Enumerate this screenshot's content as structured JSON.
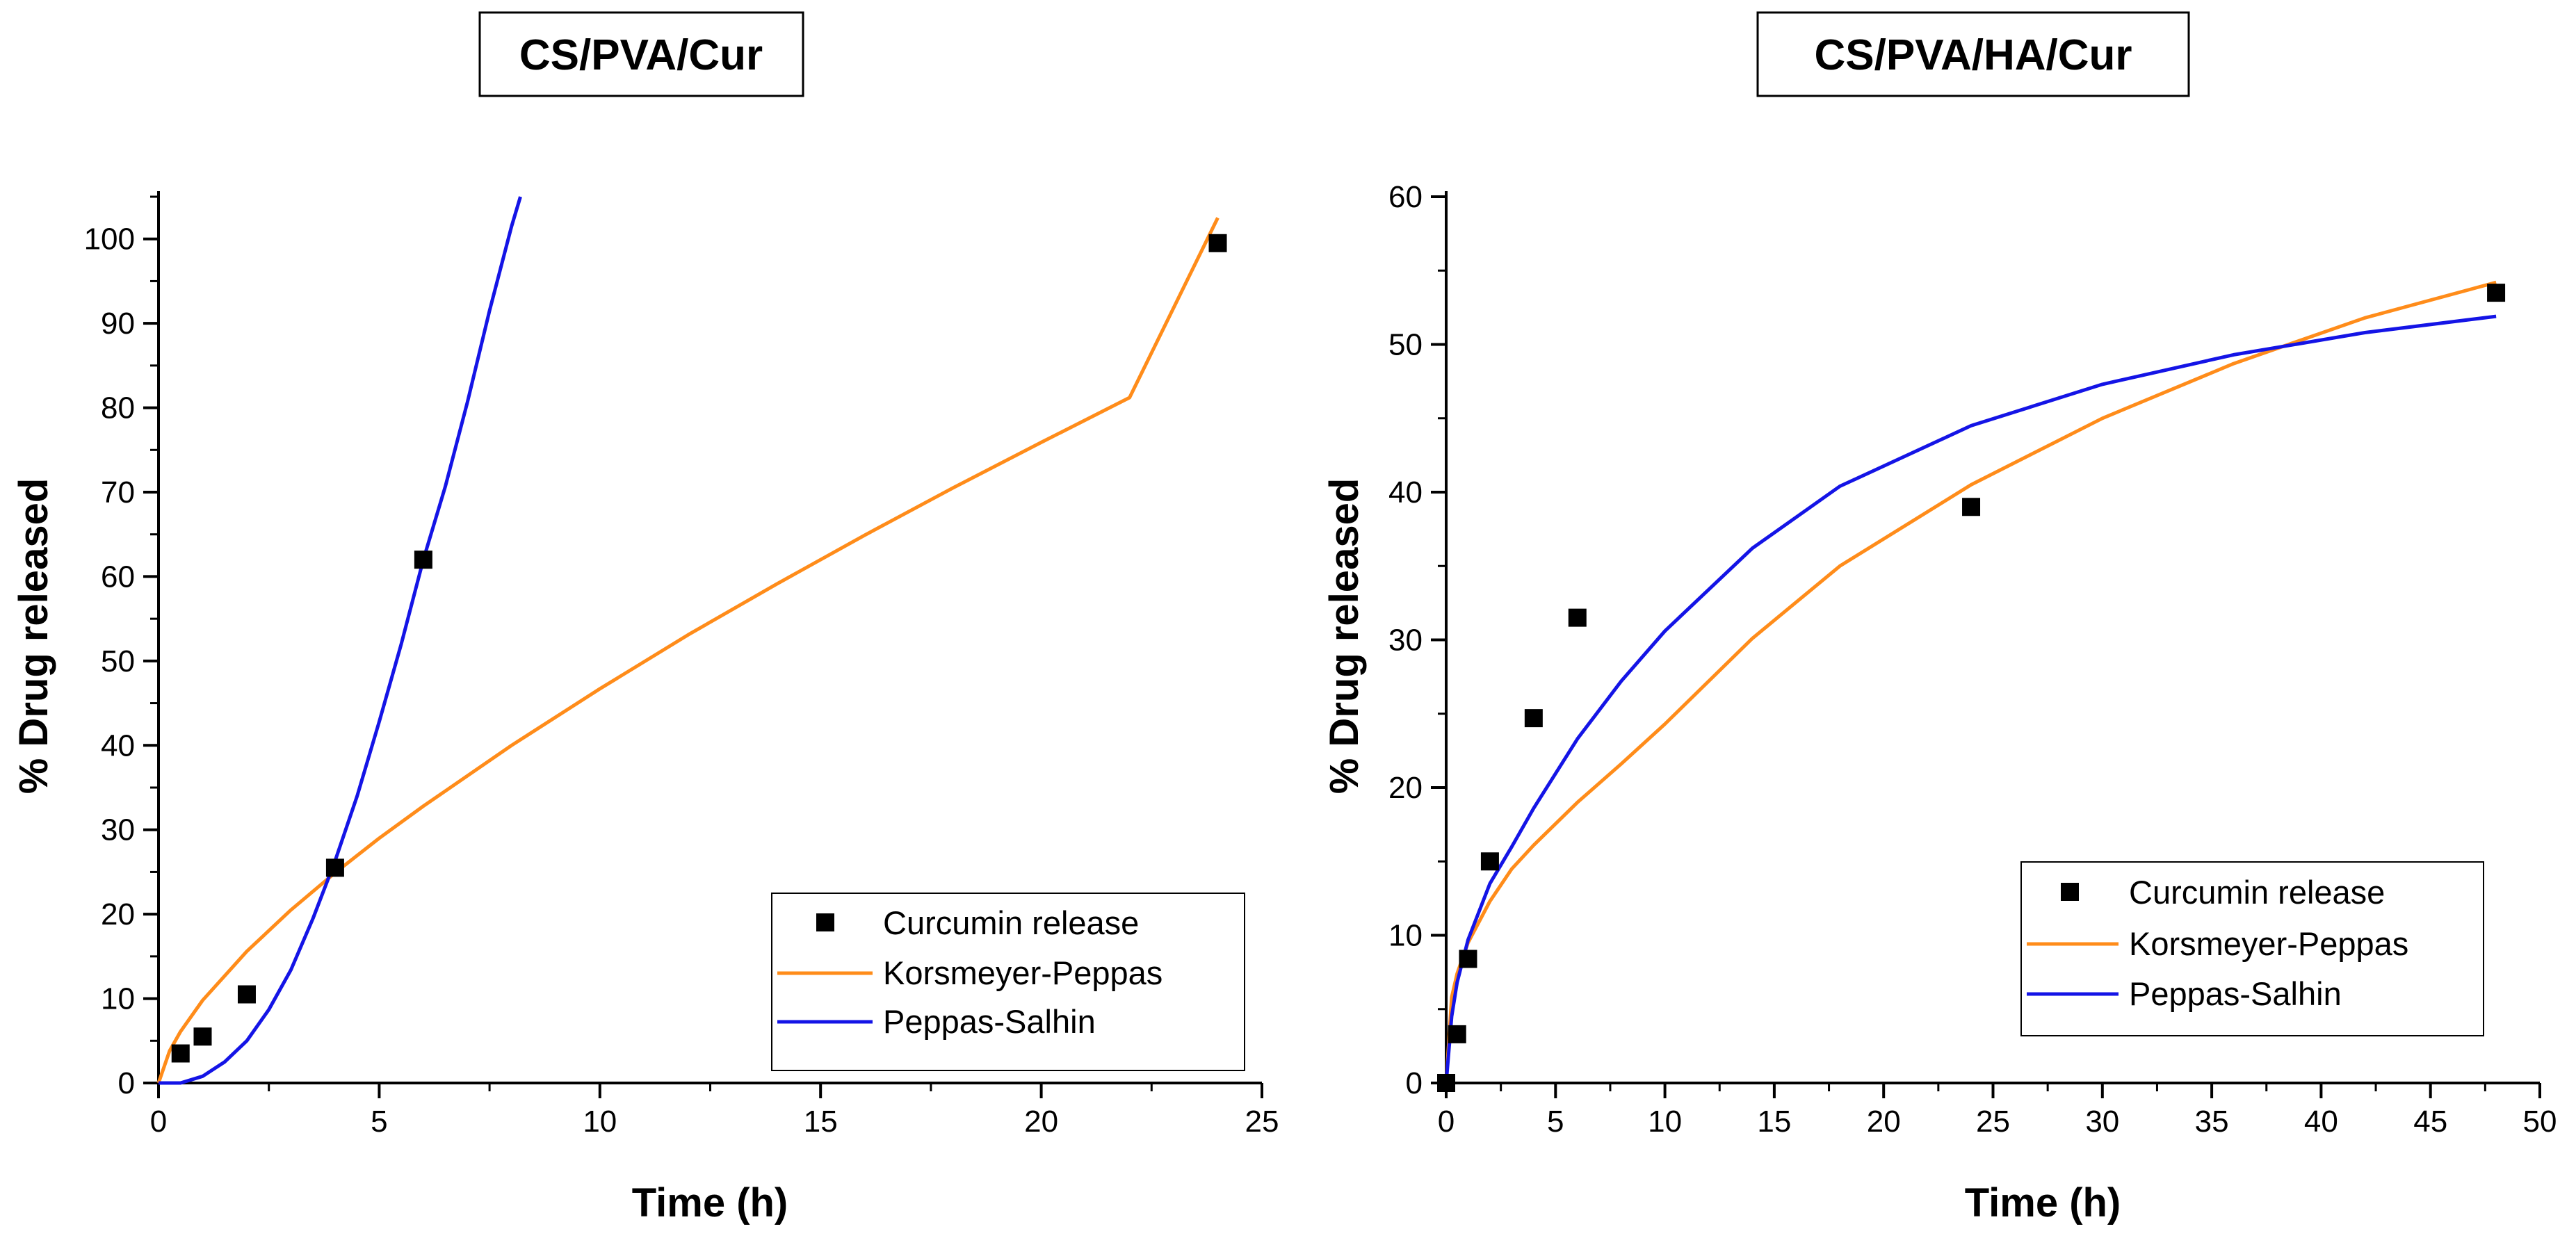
{
  "chart_data": [
    {
      "type": "scatter",
      "title": "CS/PVA/Cur",
      "xlabel": "Time (h)",
      "ylabel": "% Drug released",
      "xlim": [
        0,
        25
      ],
      "ylim": [
        0,
        105
      ],
      "x_ticks": [
        0,
        5,
        10,
        15,
        20,
        25
      ],
      "y_ticks": [
        0,
        10,
        20,
        30,
        40,
        50,
        60,
        70,
        80,
        90,
        100
      ],
      "legend_position": "bottom-right",
      "series": [
        {
          "name": "Curcumin release",
          "kind": "points",
          "color": "#000000",
          "x": [
            0.5,
            1,
            2,
            4,
            6,
            24
          ],
          "y": [
            3.5,
            5.5,
            10.5,
            25.5,
            62.0,
            99.5
          ]
        },
        {
          "name": "Korsmeyer-Peppas",
          "kind": "line",
          "color": "#FF8C1A",
          "x": [
            0,
            0.25,
            0.5,
            1,
            2,
            3,
            4,
            5,
            6,
            8,
            10,
            12,
            14,
            16,
            18,
            20,
            22,
            24
          ],
          "y": [
            0,
            3.8,
            6.1,
            9.8,
            15.6,
            20.5,
            24.9,
            29.0,
            32.8,
            40.0,
            46.7,
            53.1,
            59.1,
            64.9,
            70.5,
            75.9,
            81.2,
            102.5
          ]
        },
        {
          "name": "Peppas-Salhin",
          "kind": "line",
          "color": "#1414E6",
          "x": [
            0,
            0.5,
            1,
            1.5,
            2,
            2.5,
            3,
            3.5,
            4,
            4.5,
            5,
            5.5,
            6,
            6.5,
            7,
            7.5,
            8,
            8.2
          ],
          "y": [
            0,
            0,
            0.8,
            2.5,
            5.0,
            8.7,
            13.4,
            19.5,
            26.3,
            34.0,
            42.8,
            52.0,
            62.0,
            70.7,
            80.7,
            91.5,
            101.5,
            105.0
          ]
        }
      ]
    },
    {
      "type": "scatter",
      "title": "CS/PVA/HA/Cur",
      "xlabel": "Time (h)",
      "ylabel": "% Drug released",
      "xlim": [
        0,
        50
      ],
      "ylim": [
        0,
        60
      ],
      "x_ticks": [
        0,
        5,
        10,
        15,
        20,
        25,
        30,
        35,
        40,
        45,
        50
      ],
      "y_ticks": [
        0,
        10,
        20,
        30,
        40,
        50,
        60
      ],
      "legend_position": "bottom-right",
      "series": [
        {
          "name": "Curcumin release",
          "kind": "points",
          "color": "#000000",
          "x": [
            0,
            0.5,
            1,
            2,
            4,
            6,
            24,
            48
          ],
          "y": [
            0,
            3.3,
            8.4,
            15.0,
            24.7,
            31.5,
            39.0,
            53.5
          ]
        },
        {
          "name": "Korsmeyer-Peppas",
          "kind": "line",
          "color": "#FF8C1A",
          "x": [
            0,
            0.25,
            0.5,
            1,
            2,
            3,
            4,
            6,
            8,
            10,
            14,
            18,
            24,
            30,
            36,
            42,
            48
          ],
          "y": [
            0,
            5.8,
            7.4,
            9.5,
            12.3,
            14.5,
            16.1,
            19.0,
            21.6,
            24.3,
            30.1,
            35.0,
            40.5,
            45.0,
            48.7,
            51.8,
            54.2
          ]
        },
        {
          "name": "Peppas-Salhin",
          "kind": "line",
          "color": "#1414E6",
          "x": [
            0,
            0.25,
            0.5,
            1,
            2,
            3,
            4,
            6,
            8,
            10,
            14,
            18,
            24,
            30,
            36,
            42,
            48
          ],
          "y": [
            0,
            4.5,
            6.8,
            9.7,
            13.5,
            16.0,
            18.6,
            23.3,
            27.2,
            30.6,
            36.2,
            40.4,
            44.5,
            47.3,
            49.3,
            50.8,
            51.9
          ]
        }
      ]
    }
  ]
}
